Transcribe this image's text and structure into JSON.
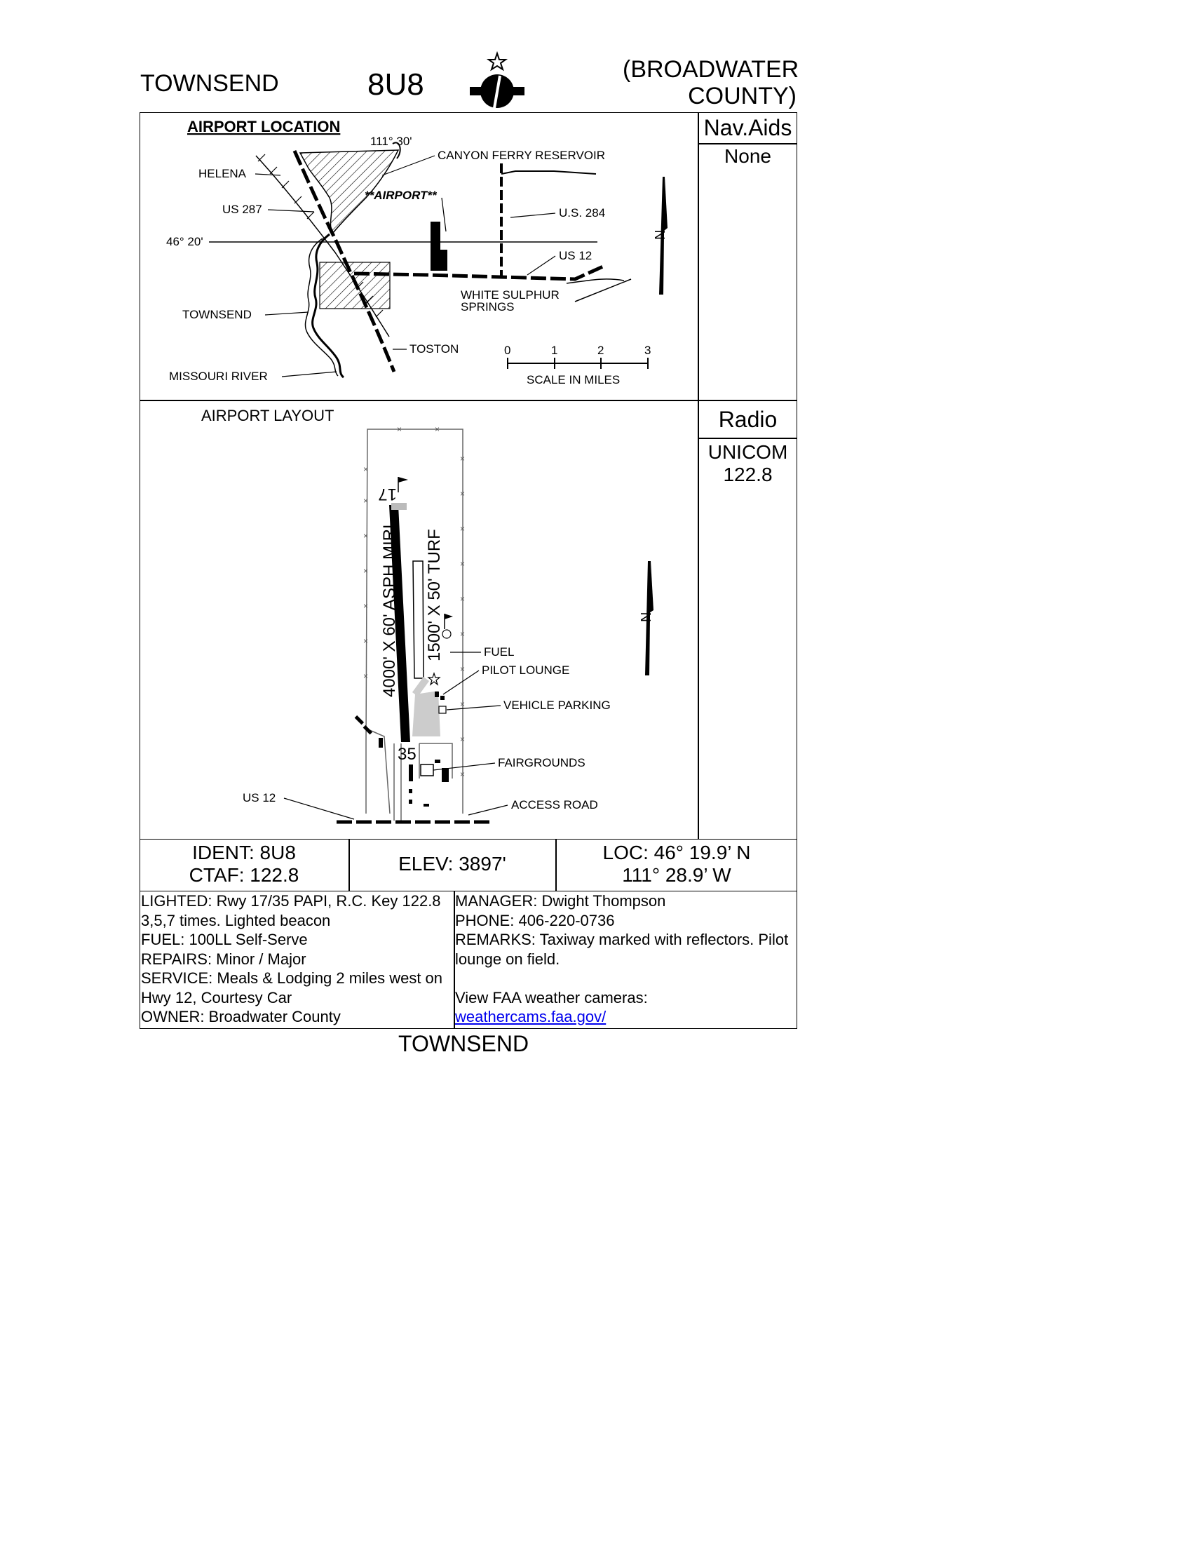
{
  "header": {
    "city": "TOWNSEND",
    "ident": "8U8",
    "county_line1": "(BROADWATER",
    "county_line2": "COUNTY)"
  },
  "location_map": {
    "title": "AIRPORT LOCATION",
    "longitude": "111° 30'",
    "latitude": "46° 20'",
    "labels": {
      "canyon_ferry": "CANYON FERRY RESERVOIR",
      "helena": "HELENA",
      "us287": "US 287",
      "airport": "**AIRPORT**",
      "us284": "U.S. 284",
      "us12": "US 12",
      "wss_line1": "WHITE SULPHUR",
      "wss_line2": "SPRINGS",
      "townsend": "TOWNSEND",
      "toston": "TOSTON",
      "missouri": "MISSOURI RIVER"
    },
    "scale": {
      "ticks": [
        "0",
        "1",
        "2",
        "3"
      ],
      "label": "SCALE IN MILES"
    }
  },
  "sidebar": {
    "navaids_title": "Nav.Aids",
    "navaids_value": "None",
    "radio_title": "Radio",
    "radio_line1": "UNICOM",
    "radio_line2": "122.8"
  },
  "layout_map": {
    "title": "AIRPORT LAYOUT",
    "rwy_north": "17",
    "rwy_south": "35",
    "paved_rwy": "4000' X 60' ASPH MIRL",
    "turf_rwy": "1500' X 50' TURF",
    "fuel": "FUEL",
    "pilot_lounge": "PILOT LOUNGE",
    "vehicle_parking": "VEHICLE PARKING",
    "fairgrounds": "FAIRGROUNDS",
    "us12": "US 12",
    "access_road": "ACCESS ROAD"
  },
  "summary": {
    "ident": "IDENT: 8U8",
    "ctaf": "CTAF: 122.8",
    "elev": "ELEV: 3897'",
    "loc_line1": "LOC: 46° 19.9’ N",
    "loc_line2": "111° 28.9’ W"
  },
  "details_left": [
    "LIGHTED: Rwy 17/35 PAPI, R.C. Key 122.8",
    "3,5,7 times. Lighted beacon",
    "FUEL: 100LL Self-Serve",
    "REPAIRS: Minor / Major",
    "SERVICE: Meals & Lodging 2 miles west on",
    "Hwy 12, Courtesy Car",
    "OWNER: Broadwater County"
  ],
  "details_right": [
    "MANAGER: Dwight Thompson",
    "PHONE: 406-220-0736",
    "REMARKS: Taxiway marked with reflectors. Pilot",
    "lounge on field.",
    "",
    "View FAA weather cameras:"
  ],
  "weathercam_link": "weathercams.faa.gov/",
  "footer": "TOWNSEND"
}
